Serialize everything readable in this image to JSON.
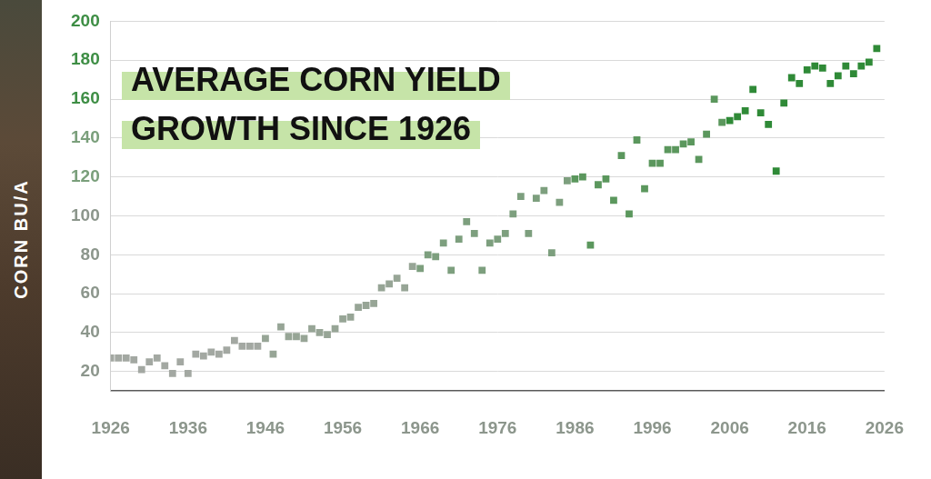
{
  "chart_data": {
    "type": "scatter",
    "title": [
      "AVERAGE CORN YIELD",
      "GROWTH SINCE 1926"
    ],
    "y_label": "CORN BU/A",
    "marker": "square",
    "grid": true,
    "x": [
      1926,
      1927,
      1928,
      1929,
      1930,
      1931,
      1932,
      1933,
      1934,
      1935,
      1936,
      1937,
      1938,
      1939,
      1940,
      1941,
      1942,
      1943,
      1944,
      1945,
      1946,
      1947,
      1948,
      1949,
      1950,
      1951,
      1952,
      1953,
      1954,
      1955,
      1956,
      1957,
      1958,
      1959,
      1960,
      1961,
      1962,
      1963,
      1964,
      1965,
      1966,
      1967,
      1968,
      1969,
      1970,
      1971,
      1972,
      1973,
      1974,
      1975,
      1976,
      1977,
      1978,
      1979,
      1980,
      1981,
      1982,
      1983,
      1984,
      1985,
      1986,
      1987,
      1988,
      1989,
      1990,
      1991,
      1992,
      1993,
      1994,
      1995,
      1996,
      1997,
      1998,
      1999,
      2000,
      2001,
      2002,
      2003,
      2004,
      2005,
      2006,
      2007,
      2008,
      2009,
      2010,
      2011,
      2012,
      2013,
      2014,
      2015,
      2016,
      2017,
      2018,
      2019,
      2020,
      2021,
      2022,
      2023,
      2024,
      2025
    ],
    "values": [
      27,
      27,
      27,
      26,
      21,
      25,
      27,
      23,
      19,
      25,
      19,
      29,
      28,
      30,
      29,
      31,
      36,
      33,
      33,
      33,
      37,
      29,
      43,
      38,
      38,
      37,
      42,
      40,
      39,
      42,
      47,
      48,
      53,
      54,
      55,
      63,
      65,
      68,
      63,
      74,
      73,
      80,
      79,
      86,
      72,
      88,
      97,
      91,
      72,
      86,
      88,
      91,
      101,
      110,
      91,
      109,
      113,
      81,
      107,
      118,
      119,
      120,
      85,
      116,
      119,
      108,
      131,
      101,
      139,
      114,
      127,
      127,
      134,
      134,
      137,
      138,
      129,
      142,
      160,
      148,
      149,
      151,
      154,
      165,
      153,
      147,
      123,
      158,
      171,
      168,
      175,
      177,
      176,
      168,
      172,
      177,
      173,
      177,
      179,
      186
    ],
    "colors": [
      "#a3a8a2",
      "#a3a8a2",
      "#a3a8a2",
      "#a3a8a2",
      "#a3a8a2",
      "#a3a8a2",
      "#a3a8a2",
      "#a3a8a2",
      "#a3a8a2",
      "#a3a8a2",
      "#a3a8a2",
      "#a3a8a2",
      "#a3a8a2",
      "#a3a8a2",
      "#a3a8a2",
      "#a3a8a2",
      "#a3a8a2",
      "#a3a8a2",
      "#a3a8a2",
      "#a3a8a2",
      "#97a596",
      "#97a596",
      "#97a596",
      "#97a596",
      "#97a596",
      "#97a596",
      "#97a596",
      "#97a596",
      "#97a596",
      "#97a596",
      "#97a596",
      "#97a596",
      "#97a596",
      "#97a596",
      "#97a596",
      "#97a596",
      "#97a596",
      "#97a596",
      "#97a596",
      "#97a596",
      "#7d9f7e",
      "#7d9f7e",
      "#7d9f7e",
      "#7d9f7e",
      "#7d9f7e",
      "#7d9f7e",
      "#7d9f7e",
      "#7d9f7e",
      "#7d9f7e",
      "#7d9f7e",
      "#7d9f7e",
      "#7d9f7e",
      "#7d9f7e",
      "#7d9f7e",
      "#7d9f7e",
      "#7d9f7e",
      "#7d9f7e",
      "#7d9f7e",
      "#7d9f7e",
      "#7d9f7e",
      "#5b975d",
      "#5b975d",
      "#5b975d",
      "#5b975d",
      "#5b975d",
      "#5b975d",
      "#5b975d",
      "#5b975d",
      "#5b975d",
      "#5b975d",
      "#5b975d",
      "#5b975d",
      "#5b975d",
      "#5b975d",
      "#5b975d",
      "#5b975d",
      "#5b975d",
      "#5b975d",
      "#5b975d",
      "#5b975d",
      "#2f8a37",
      "#2f8a37",
      "#2f8a37",
      "#2f8a37",
      "#2f8a37",
      "#2f8a37",
      "#2f8a37",
      "#2f8a37",
      "#2f8a37",
      "#2f8a37",
      "#2f8a37",
      "#2f8a37",
      "#2f8a37",
      "#2f8a37",
      "#2f8a37",
      "#2f8a37",
      "#2f8a37",
      "#2f8a37",
      "#2f8a37",
      "#2f8a37"
    ],
    "xlim": [
      1926,
      2026
    ],
    "xticks": [
      1926,
      1936,
      1946,
      1956,
      1966,
      1976,
      1986,
      1996,
      2006,
      2016,
      2026
    ],
    "ylim": [
      10,
      200
    ],
    "yticks": [
      20,
      40,
      60,
      80,
      100,
      120,
      140,
      160,
      180,
      200
    ]
  }
}
